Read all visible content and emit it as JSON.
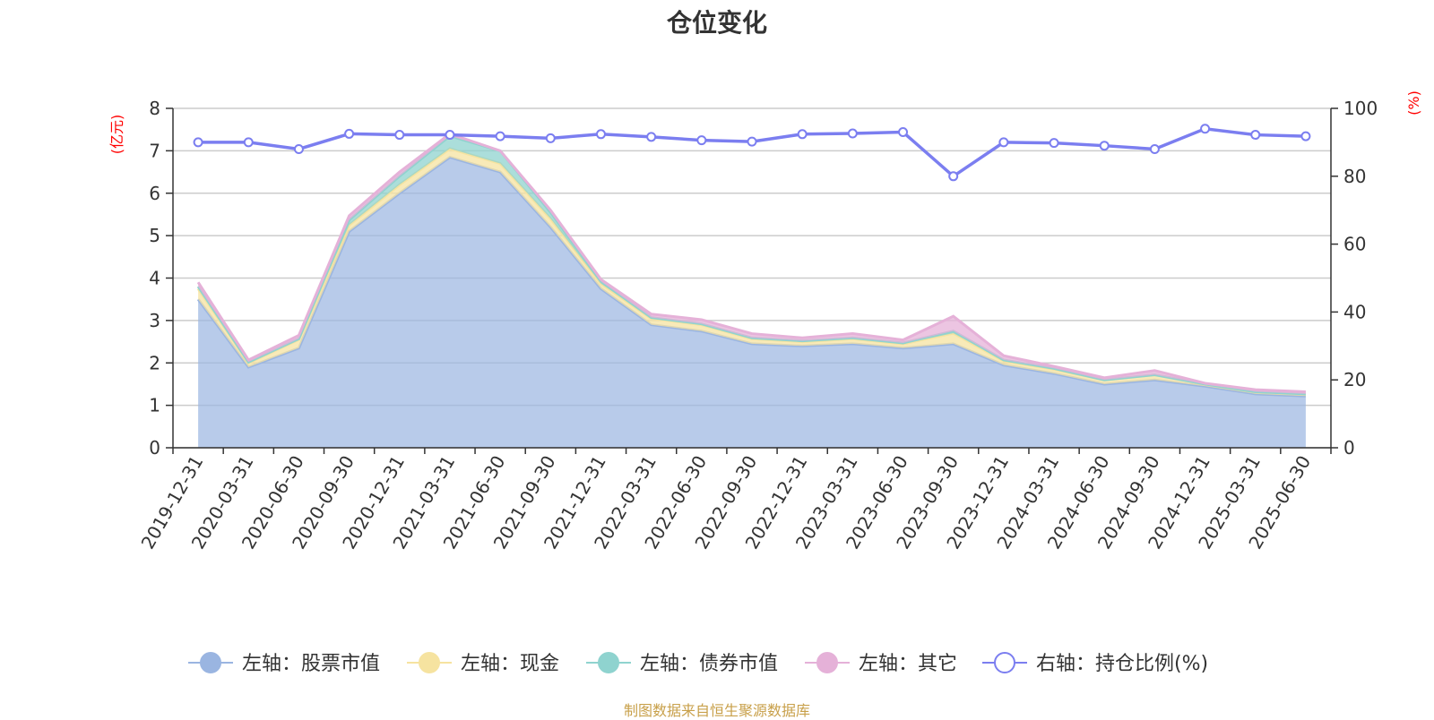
{
  "chart_data": {
    "type": "area",
    "title": "仓位变化",
    "left_unit": "(亿元)",
    "right_unit": "(%)",
    "ylim_left": [
      0,
      8
    ],
    "yticks_left": [
      "0",
      "1",
      "2",
      "3",
      "4",
      "5",
      "6",
      "7",
      "8"
    ],
    "ylim_right": [
      0,
      100
    ],
    "yticks_right": [
      "0",
      "20",
      "40",
      "60",
      "80",
      "100"
    ],
    "categories": [
      "2019-12-31",
      "2020-03-31",
      "2020-06-30",
      "2020-09-30",
      "2020-12-31",
      "2021-03-31",
      "2021-06-30",
      "2021-09-30",
      "2021-12-31",
      "2022-03-31",
      "2022-06-30",
      "2022-09-30",
      "2022-12-31",
      "2023-03-31",
      "2023-06-30",
      "2023-09-30",
      "2023-12-31",
      "2024-03-31",
      "2024-06-30",
      "2024-09-30",
      "2024-12-31",
      "2025-03-31",
      "2025-06-30"
    ],
    "stacked_series": [
      {
        "name": "左轴：股票市值",
        "color": "#9ab5e1",
        "values": [
          3.5,
          1.9,
          2.35,
          5.1,
          6.0,
          6.85,
          6.5,
          5.2,
          3.75,
          2.9,
          2.75,
          2.45,
          2.4,
          2.45,
          2.35,
          2.45,
          1.95,
          1.75,
          1.5,
          1.6,
          1.45,
          1.27,
          1.22
        ]
      },
      {
        "name": "左轴：现金",
        "color": "#f6e3a0",
        "values": [
          0.25,
          0.1,
          0.2,
          0.15,
          0.2,
          0.2,
          0.2,
          0.2,
          0.12,
          0.15,
          0.15,
          0.12,
          0.1,
          0.12,
          0.1,
          0.25,
          0.1,
          0.1,
          0.1,
          0.12,
          0.05,
          0.05,
          0.05
        ]
      },
      {
        "name": "左轴：债券市值",
        "color": "#8fd3cf",
        "values": [
          0.05,
          0.02,
          0.02,
          0.12,
          0.2,
          0.3,
          0.3,
          0.15,
          0.05,
          0.02,
          0.02,
          0.02,
          0.02,
          0.02,
          0.02,
          0.05,
          0.02,
          0.02,
          0.0,
          0.0,
          0.0,
          0.0,
          0.0
        ]
      },
      {
        "name": "左轴：其它",
        "color": "#e5b1d8",
        "values": [
          0.1,
          0.05,
          0.08,
          0.1,
          0.1,
          0.05,
          0.0,
          0.05,
          0.05,
          0.08,
          0.1,
          0.1,
          0.07,
          0.1,
          0.07,
          0.35,
          0.1,
          0.05,
          0.05,
          0.1,
          0.02,
          0.05,
          0.05
        ]
      }
    ],
    "line_series": {
      "name": "右轴：持仓比例(%)",
      "color": "#7b7ef0",
      "values": [
        90,
        90,
        88,
        92.5,
        92.2,
        92.2,
        91.8,
        91.2,
        92.4,
        91.6,
        90.6,
        90.2,
        92.4,
        92.6,
        93,
        80,
        90,
        89.8,
        89,
        88,
        94,
        92.2,
        91.8
      ]
    },
    "legend_position": "bottom",
    "grid": true
  },
  "source_note": "制图数据来自恒生聚源数据库"
}
